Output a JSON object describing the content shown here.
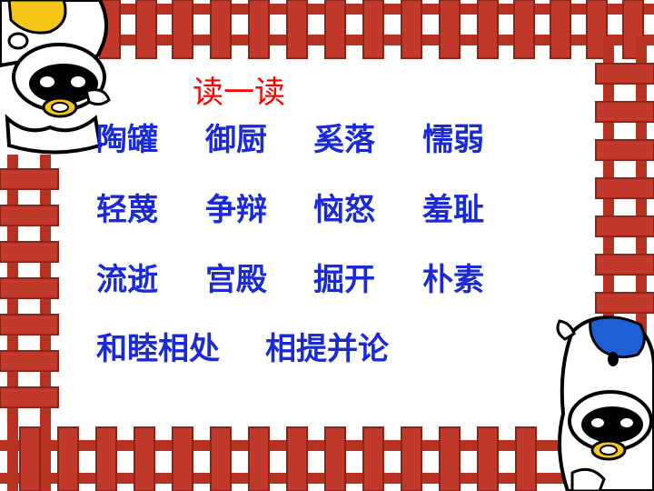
{
  "slide": {
    "title": "读一读",
    "rows": [
      [
        "陶罐",
        "御厨",
        "奚落",
        "懦弱"
      ],
      [
        "轻蔑",
        "争辩",
        "恼怒",
        "羞耻"
      ],
      [
        "流逝",
        "宫殿",
        "掘开",
        "朴素"
      ],
      [
        "和睦相处",
        "相提并论"
      ]
    ]
  },
  "colors": {
    "fence": "#c0392b",
    "fence_shadow": "#8e2318",
    "title": "#ff0000",
    "words": "#1a2ad6",
    "cow_yellow": "#f5c518",
    "cow_blue": "#1f5fd6"
  },
  "icons": [
    "wooden-fence-frame",
    "yellow-cow-cartoon",
    "blue-cow-cartoon"
  ]
}
